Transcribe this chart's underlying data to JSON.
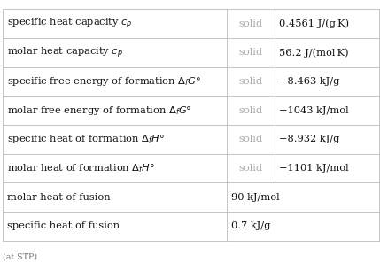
{
  "rows": [
    {
      "col1": "specific heat capacity $c_p$",
      "col2": "solid",
      "col3": "0.4561 J/(g K)",
      "has_col2": true
    },
    {
      "col1": "molar heat capacity $c_p$",
      "col2": "solid",
      "col3": "56.2 J/(mol K)",
      "has_col2": true
    },
    {
      "col1": "specific free energy of formation $\\Delta_f G°$",
      "col2": "solid",
      "col3": "−8.463 kJ/g",
      "has_col2": true
    },
    {
      "col1": "molar free energy of formation $\\Delta_f G°$",
      "col2": "solid",
      "col3": "−1043 kJ/mol",
      "has_col2": true
    },
    {
      "col1": "specific heat of formation $\\Delta_f H°$",
      "col2": "solid",
      "col3": "−8.932 kJ/g",
      "has_col2": true
    },
    {
      "col1": "molar heat of formation $\\Delta_f H°$",
      "col2": "solid",
      "col3": "−1101 kJ/mol",
      "has_col2": true
    },
    {
      "col1": "molar heat of fusion",
      "col2": "",
      "col3": "90 kJ/mol",
      "has_col2": false
    },
    {
      "col1": "specific heat of fusion",
      "col2": "",
      "col3": "0.7 kJ/g",
      "has_col2": false
    }
  ],
  "footnote": "(at STP)",
  "bg_color": "#ffffff",
  "border_color": "#bbbbbb",
  "col1_text_color": "#111111",
  "col2_text_color": "#aaaaaa",
  "col3_text_color": "#111111",
  "footnote_color": "#777777",
  "font_size_main": 8.2,
  "font_size_footnote": 6.8,
  "fig_width": 4.29,
  "fig_height": 2.97,
  "dpi": 100
}
